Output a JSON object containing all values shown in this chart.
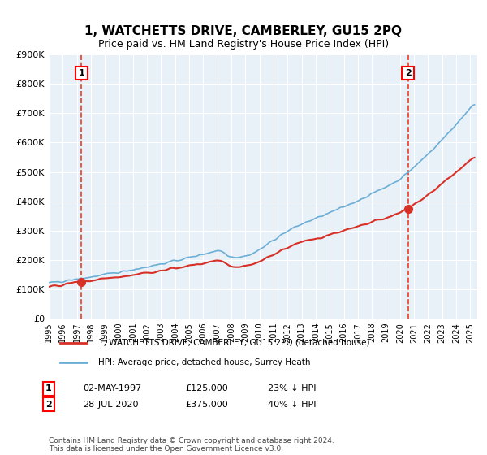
{
  "title": "1, WATCHETTS DRIVE, CAMBERLEY, GU15 2PQ",
  "subtitle": "Price paid vs. HM Land Registry's House Price Index (HPI)",
  "ylabel_values": [
    "£0",
    "£100K",
    "£200K",
    "£300K",
    "£400K",
    "£500K",
    "£600K",
    "£700K",
    "£800K",
    "£900K"
  ],
  "ylim": [
    0,
    900000
  ],
  "yticks": [
    0,
    100000,
    200000,
    300000,
    400000,
    500000,
    600000,
    700000,
    800000,
    900000
  ],
  "sale1_date": 1997.33,
  "sale1_price": 125000,
  "sale1_label": "1",
  "sale1_text": "02-MAY-1997    £125,000    23% ↓ HPI",
  "sale2_date": 2020.57,
  "sale2_price": 375000,
  "sale2_label": "2",
  "sale2_text": "28-JUL-2020    £375,000    40% ↓ HPI",
  "hpi_color": "#6baed6",
  "price_color": "#d73027",
  "dashed_color": "#f03b20",
  "background_color": "#e8f0f8",
  "legend_line1": "1, WATCHETTS DRIVE, CAMBERLEY, GU15 2PQ (detached house)",
  "legend_line2": "HPI: Average price, detached house, Surrey Heath",
  "footer1": "Contains HM Land Registry data © Crown copyright and database right 2024.",
  "footer2": "This data is licensed under the Open Government Licence v3.0.",
  "xlim_start": 1995.0,
  "xlim_end": 2025.5
}
